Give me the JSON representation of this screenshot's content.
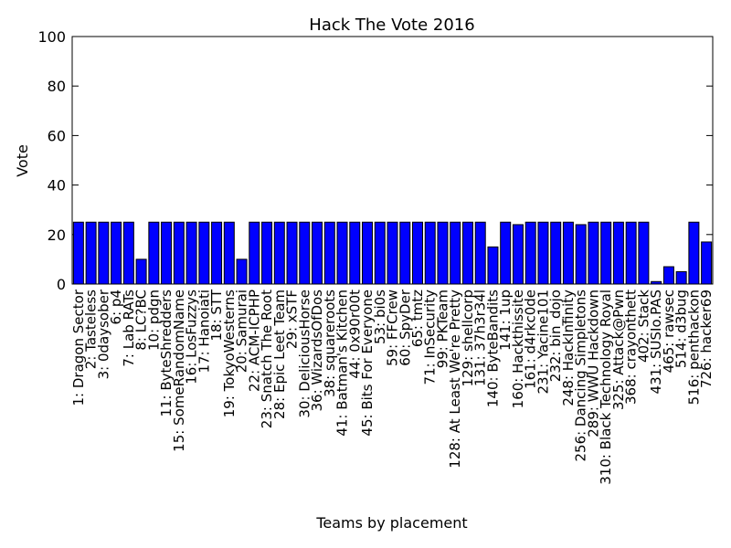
{
  "chart_data": {
    "type": "bar",
    "title": "Hack The Vote 2016",
    "xlabel": "Teams by placement",
    "ylabel": "Vote",
    "ylim": [
      0,
      100
    ],
    "yticks": [
      0,
      20,
      40,
      60,
      80,
      100
    ],
    "grid": false,
    "bar_color": "#0000ff",
    "categories": [
      "1: Dragon Sector",
      "2: Tasteless",
      "3: 0daysober",
      "6: p4",
      "7: Lab RATs",
      "8: LC?BC",
      "10: pdgn",
      "11: ByteShredders",
      "15: SomeRandomName",
      "16: LosFuzzys",
      "17: Hanoiati",
      "18: STT",
      "19: TokyoWesterns",
      "20: Samurai",
      "22: ACM-ICPHP",
      "23: Snatch The Root",
      "28: Epic Leet Team",
      "29: xSTF",
      "30: DeliciousHorse",
      "36: WizardsOfDos",
      "38: squareroots",
      "41: Batman's Kitchen",
      "44: 0x90r00t",
      "45: Bits For Everyone",
      "53: bi0s",
      "59: FFCrew",
      "60: SpyDer",
      "65: tmtz",
      "71: InSecurity",
      "99: PKTeam",
      "128: At Least We're Pretty",
      "129: shellcorp",
      "131: 37h3r34l",
      "140: ByteBandits",
      "141: 1up",
      "160: Hackthissite",
      "161: d4rkc0de",
      "231: Yacine101",
      "232: bin_dojo",
      "248: HackInfinity",
      "256: Dancing Simpletons",
      "289: WWU Hackdown",
      "310: Black Technology Royal",
      "325: Attack@Pwn",
      "368: crayonthett",
      "402: Stack",
      "431: SUSIo.PAS",
      "465: rawsec",
      "514: d3bug",
      "516: penthackon",
      "726: hacker69"
    ],
    "values": [
      25,
      25,
      25,
      25,
      25,
      10,
      25,
      25,
      25,
      25,
      25,
      25,
      25,
      10,
      25,
      25,
      25,
      25,
      25,
      25,
      25,
      25,
      25,
      25,
      25,
      25,
      25,
      25,
      25,
      25,
      25,
      25,
      25,
      15,
      25,
      24,
      25,
      25,
      25,
      25,
      24,
      25,
      25,
      25,
      25,
      25,
      1,
      7,
      5,
      25,
      17
    ]
  }
}
